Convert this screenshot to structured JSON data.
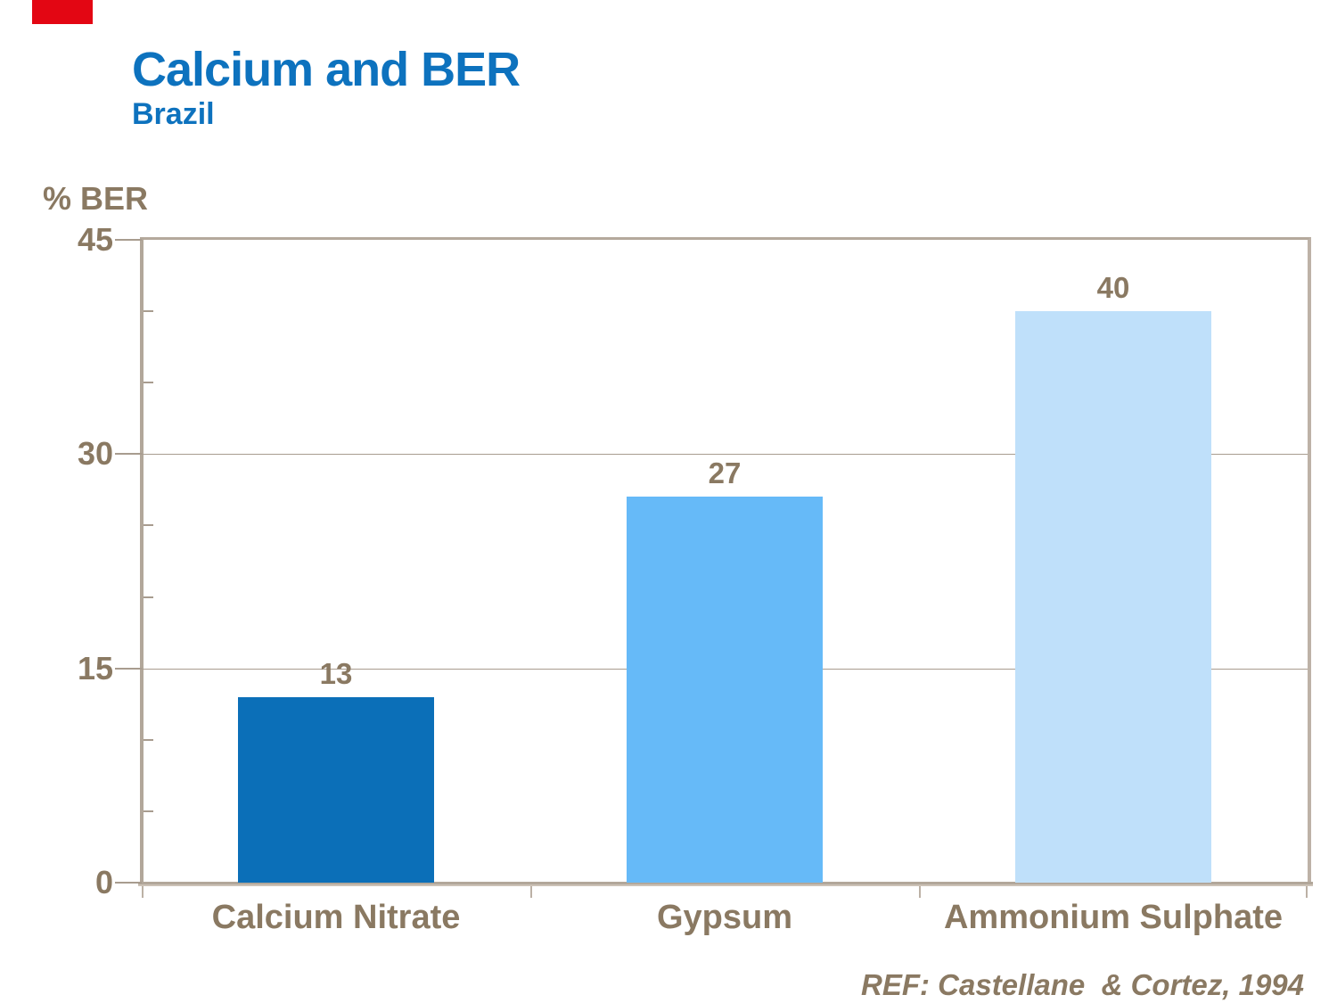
{
  "decoration": {
    "red_flag_color": "#e30613"
  },
  "header": {
    "title": "Calcium and BER",
    "subtitle": "Brazil",
    "title_color": "#0d72be"
  },
  "chart_data": {
    "type": "bar",
    "title": "Calcium and BER",
    "subtitle": "Brazil",
    "categories": [
      "Calcium Nitrate",
      "Gypsum",
      "Ammonium Sulphate"
    ],
    "values": [
      13,
      27,
      40
    ],
    "data_labels": [
      "13",
      "27",
      "40"
    ],
    "bar_colors": [
      "#0b6fb8",
      "#66baf8",
      "#bfe0fa"
    ],
    "ylabel": "% BER",
    "xlabel": "",
    "ylim": [
      0,
      45
    ],
    "yticks": [
      45,
      30,
      15,
      0
    ],
    "minor_tick_step": 5,
    "grid": "horizontal-major",
    "legend": "none",
    "text_color": "#8a7962",
    "axis_color": "#b2a79a"
  },
  "footer": {
    "reference": "REF: Castellane  & Cortez, 1994"
  }
}
